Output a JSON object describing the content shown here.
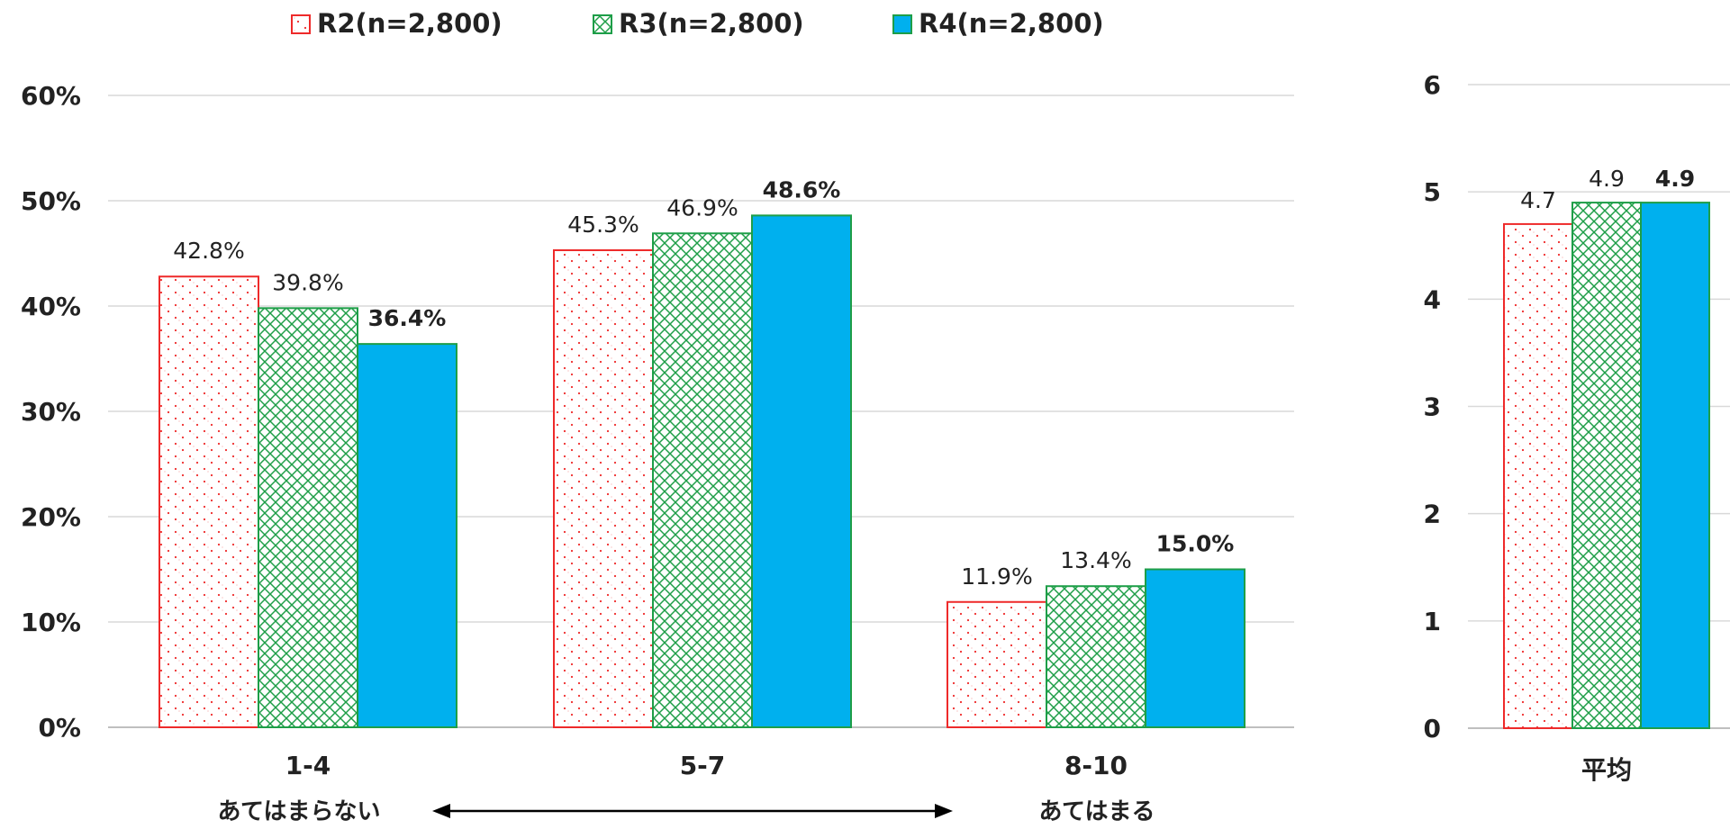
{
  "chart_data": [
    {
      "type": "bar",
      "categories": [
        "1-4",
        "5-7",
        "8-10"
      ],
      "series": [
        {
          "name": "R2(n=2,800)",
          "values": [
            42.8,
            45.3,
            11.9
          ],
          "labels": [
            "42.8%",
            "45.3%",
            "11.9%"
          ]
        },
        {
          "name": "R3(n=2,800)",
          "values": [
            39.8,
            46.9,
            13.4
          ],
          "labels": [
            "39.8%",
            "46.9%",
            "13.4%"
          ]
        },
        {
          "name": "R4(n=2,800)",
          "values": [
            36.4,
            48.6,
            15.0
          ],
          "labels": [
            "36.4%",
            "48.6%",
            "15.0%"
          ]
        }
      ],
      "ylim": [
        0,
        60
      ],
      "y_ticks": [
        "0%",
        "10%",
        "20%",
        "30%",
        "40%",
        "50%",
        "60%"
      ],
      "grid": true,
      "legend_position": "top",
      "scale_labels": {
        "left": "あてはまらない",
        "right": "あてはまる"
      }
    },
    {
      "type": "bar",
      "categories": [
        "平均"
      ],
      "series": [
        {
          "name": "R2(n=2,800)",
          "values": [
            4.7
          ],
          "labels": [
            "4.7"
          ]
        },
        {
          "name": "R3(n=2,800)",
          "values": [
            4.9
          ],
          "labels": [
            "4.9"
          ]
        },
        {
          "name": "R4(n=2,800)",
          "values": [
            4.9
          ],
          "labels": [
            "4.9"
          ]
        }
      ],
      "ylim": [
        0,
        6
      ],
      "y_ticks": [
        "0",
        "1",
        "2",
        "3",
        "4",
        "5",
        "6"
      ],
      "grid": true
    }
  ],
  "style": {
    "r2_color": "#ee2a2a",
    "r3_color": "#1e9e48",
    "r4_color": "#00b0ee",
    "grid_color": "#d9d9d9"
  }
}
